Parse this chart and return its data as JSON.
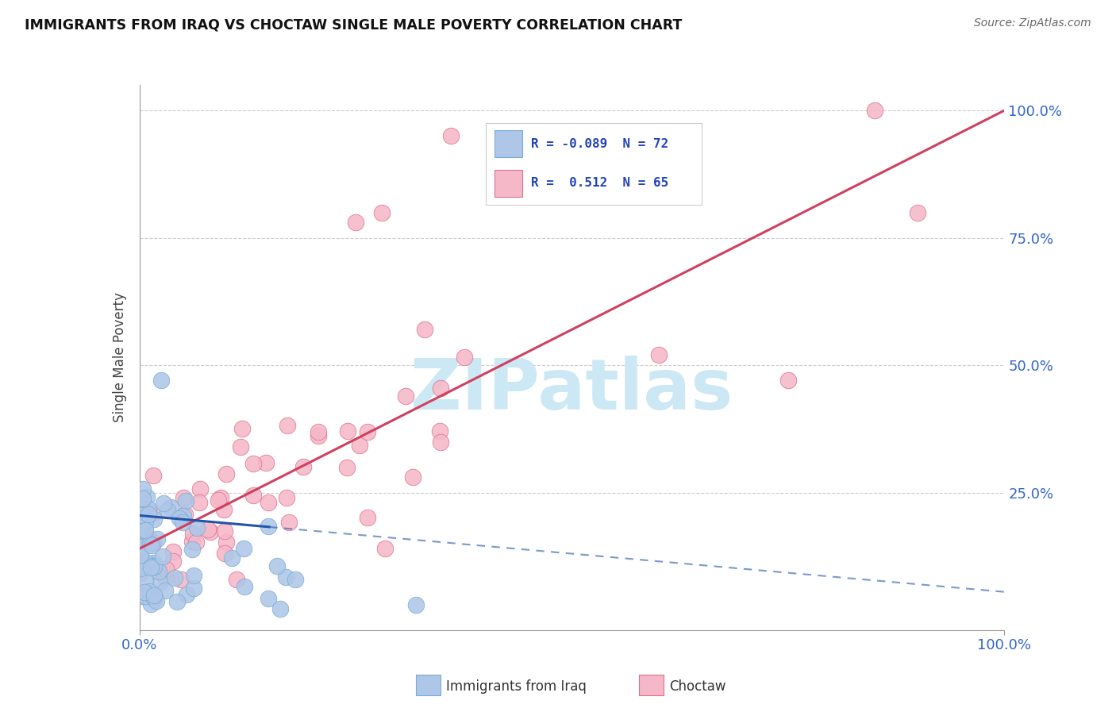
{
  "title": "IMMIGRANTS FROM IRAQ VS CHOCTAW SINGLE MALE POVERTY CORRELATION CHART",
  "source": "Source: ZipAtlas.com",
  "ylabel": "Single Male Poverty",
  "xlim": [
    0,
    100
  ],
  "ylim": [
    -2,
    105
  ],
  "series1_label": "Immigrants from Iraq",
  "series1_color": "#aec6e8",
  "series1_edge_color": "#7aadd4",
  "series1_R": "-0.089",
  "series1_N": "72",
  "series1_line_color": "#2255aa",
  "series1_line_solid_end": 15,
  "series2_label": "Choctaw",
  "series2_color": "#f5b8c8",
  "series2_edge_color": "#e07090",
  "series2_R": "0.512",
  "series2_N": "65",
  "series2_line_color": "#d04060",
  "watermark_text": "ZIPatlas",
  "watermark_color": "#cce8f4",
  "grid_color": "#c8c8c8",
  "background_color": "#ffffff",
  "blue_line_x0": 0,
  "blue_line_y0": 20.5,
  "blue_line_x1": 100,
  "blue_line_y1": 5.5,
  "pink_line_x0": 0,
  "pink_line_y0": 14.0,
  "pink_line_x1": 100,
  "pink_line_y1": 100.0
}
